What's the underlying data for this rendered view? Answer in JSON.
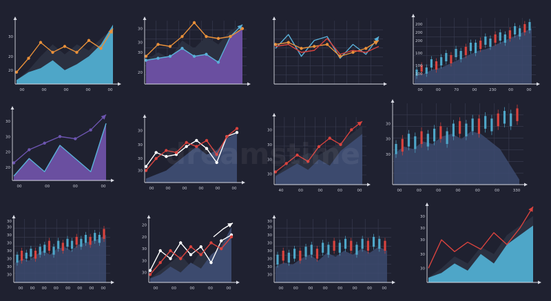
{
  "colors": {
    "background": "#1f2130",
    "axis": "#d8dae3",
    "grid": "#3a3d52",
    "orange": "#e8903a",
    "blue": "#5ab0d8",
    "teal": "#4ea6c8",
    "purple": "#6a4fa0",
    "purple_line": "#6d55b0",
    "red": "#d9433e",
    "white": "#ffffff",
    "slate": "#3c4a6e",
    "dark_shadow": "#2b3040",
    "candle_up": "#4ea6c8",
    "candle_down": "#d9433e"
  },
  "watermark": "dreamstime",
  "chart_data": [
    {
      "id": "c1",
      "type": "area",
      "ylim": [
        10,
        42
      ],
      "yticks": [
        "20",
        "20",
        "30"
      ],
      "ytick_values": [
        17,
        24,
        34
      ],
      "xticks": [
        "00",
        "00",
        "00",
        "00",
        "00"
      ],
      "series": [
        {
          "style": "fill",
          "color": "#2b3040",
          "values": [
            12,
            17,
            24,
            30,
            25,
            30,
            27,
            33,
            38
          ]
        },
        {
          "style": "fill",
          "color": "#4ea6c8",
          "values": [
            12,
            16,
            18,
            22,
            17,
            20,
            24,
            30,
            40
          ]
        },
        {
          "style": "line",
          "color": "#e8903a",
          "markers": true,
          "arrow": true,
          "values": [
            16,
            23,
            31,
            26,
            29,
            26,
            32,
            28,
            38
          ]
        }
      ]
    },
    {
      "id": "c2",
      "type": "area",
      "ylim": [
        10,
        42
      ],
      "yticks": [
        "20",
        "30",
        "30",
        "30"
      ],
      "ytick_values": [
        16,
        26,
        31,
        38
      ],
      "xticks": [],
      "series": [
        {
          "style": "fill",
          "color": "#2b3040",
          "values": [
            22,
            26,
            23,
            32,
            28,
            34,
            30,
            37,
            40
          ]
        },
        {
          "style": "fill",
          "color": "#6a4fa0",
          "values": [
            22,
            23,
            24,
            28,
            24,
            25,
            21,
            34,
            38
          ]
        },
        {
          "style": "line",
          "color": "#5ab0d8",
          "markers": true,
          "arrow": true,
          "values": [
            22,
            23,
            24,
            28,
            24,
            25,
            21,
            34,
            40
          ]
        },
        {
          "style": "line",
          "color": "#e8903a",
          "markers": true,
          "arrow": false,
          "values": [
            24,
            30,
            29,
            34,
            41,
            34,
            33,
            34,
            38
          ]
        }
      ]
    },
    {
      "id": "c3",
      "type": "line",
      "ylim": [
        10,
        42
      ],
      "yticks": [],
      "xticks": [],
      "series": [
        {
          "style": "line",
          "color": "#5ab0d8",
          "markers": false,
          "arrow": true,
          "values": [
            28,
            35,
            24,
            32,
            34,
            23,
            30,
            25,
            34
          ]
        },
        {
          "style": "line",
          "color": "#e8903a",
          "markers": true,
          "arrow": true,
          "values": [
            30,
            31,
            28,
            29,
            30,
            24,
            26,
            28,
            32
          ]
        },
        {
          "style": "line",
          "color": "#d9433e",
          "markers": false,
          "arrow": false,
          "values": [
            29,
            30,
            26,
            27,
            33,
            25,
            27,
            26,
            29
          ]
        }
      ]
    },
    {
      "id": "c4",
      "type": "candlestick",
      "ylim": [
        10,
        42
      ],
      "yticks": [
        "100",
        "100",
        "100",
        "200",
        "200",
        "200"
      ],
      "ytick_values": [
        15,
        19,
        25,
        31,
        35,
        39
      ],
      "xticks": [
        "00",
        "00",
        "70",
        "00",
        "230",
        "00",
        "00"
      ],
      "area": [
        14,
        15,
        17,
        18,
        20,
        22,
        24,
        26,
        27,
        29,
        31,
        33,
        35,
        37
      ],
      "candles": [
        [
          14,
          17
        ],
        [
          16,
          19
        ],
        [
          15,
          18
        ],
        [
          18,
          22
        ],
        [
          17,
          21
        ],
        [
          19,
          23
        ],
        [
          21,
          25
        ],
        [
          20,
          24
        ],
        [
          23,
          27
        ],
        [
          22,
          26
        ],
        [
          24,
          28
        ],
        [
          26,
          30
        ],
        [
          25,
          30
        ],
        [
          27,
          31
        ],
        [
          29,
          33
        ],
        [
          28,
          32
        ],
        [
          30,
          34
        ],
        [
          31,
          35
        ],
        [
          30,
          34
        ],
        [
          32,
          36
        ],
        [
          34,
          38
        ],
        [
          33,
          37
        ],
        [
          35,
          39
        ],
        [
          36,
          40
        ]
      ]
    },
    {
      "id": "c5",
      "type": "area",
      "ylim": [
        10,
        42
      ],
      "yticks": [
        "20",
        "20",
        "30",
        "30"
      ],
      "ytick_values": [
        16,
        23,
        30,
        37
      ],
      "xticks": [
        "00",
        "00",
        "00",
        "00"
      ],
      "series": [
        {
          "style": "fill",
          "color": "#6a4fa0",
          "values": [
            12,
            20,
            14,
            26,
            20,
            14,
            36
          ]
        },
        {
          "style": "line",
          "color": "#5ab0d8",
          "markers": false,
          "arrow": false,
          "values": [
            12,
            20,
            14,
            26,
            20,
            14,
            36
          ]
        },
        {
          "style": "line",
          "color": "#6d55b0",
          "markers": true,
          "arrow": true,
          "values": [
            18,
            24,
            27,
            30,
            29,
            33,
            40
          ]
        }
      ]
    },
    {
      "id": "c6",
      "type": "area",
      "ylim": [
        10,
        42
      ],
      "yticks": [
        "30",
        "30",
        "30",
        "30"
      ],
      "ytick_values": [
        16,
        22,
        29,
        36
      ],
      "xticks": [
        "00",
        "00",
        "00",
        "00",
        "00",
        "00"
      ],
      "series": [
        {
          "style": "fill",
          "color": "#3c4a6e",
          "values": [
            12,
            14,
            16,
            20,
            24,
            28,
            24,
            26,
            32,
            35
          ]
        },
        {
          "style": "line",
          "color": "#ffffff",
          "markers": true,
          "arrow": false,
          "values": [
            18,
            25,
            23,
            24,
            28,
            31,
            27,
            20,
            33,
            35
          ]
        },
        {
          "style": "line",
          "color": "#d9433e",
          "markers": true,
          "arrow": false,
          "values": [
            16,
            22,
            26,
            25,
            30,
            28,
            31,
            24,
            33,
            37
          ]
        }
      ]
    },
    {
      "id": "c7",
      "type": "area",
      "ylim": [
        10,
        42
      ],
      "yticks": [
        "30",
        "30",
        "30",
        "30"
      ],
      "ytick_values": [
        15,
        22,
        29,
        36
      ],
      "xticks": [
        "40",
        "00",
        "00",
        "00",
        "00"
      ],
      "series": [
        {
          "style": "fill",
          "color": "#2b3040",
          "values": [
            14,
            19,
            22,
            25,
            24,
            27,
            30,
            34,
            38
          ]
        },
        {
          "style": "fill",
          "color": "#3c4a6e",
          "values": [
            14,
            17,
            20,
            17,
            22,
            19,
            26,
            30,
            34
          ]
        },
        {
          "style": "line",
          "color": "#d9433e",
          "markers": true,
          "arrow": true,
          "values": [
            16,
            20,
            24,
            21,
            28,
            32,
            29,
            36,
            40
          ]
        }
      ]
    },
    {
      "id": "c8",
      "type": "candlestick",
      "ylim": [
        10,
        42
      ],
      "yticks": [
        "30",
        "30",
        "30"
      ],
      "ytick_values": [
        22,
        28,
        34
      ],
      "xticks": [
        "00",
        "00",
        "00",
        "00",
        "00",
        "00",
        "330"
      ],
      "area": [
        22,
        25,
        24,
        27,
        26,
        29,
        30,
        28,
        31,
        30,
        27,
        24,
        18,
        12
      ],
      "candles": [
        [
          22,
          26
        ],
        [
          23,
          28
        ],
        [
          25,
          30
        ],
        [
          24,
          29
        ],
        [
          26,
          31
        ],
        [
          25,
          30
        ],
        [
          27,
          32
        ],
        [
          28,
          33
        ],
        [
          26,
          31
        ],
        [
          29,
          34
        ],
        [
          30,
          35
        ],
        [
          29,
          34
        ],
        [
          31,
          36
        ],
        [
          30,
          36
        ],
        [
          32,
          37
        ],
        [
          31,
          36
        ],
        [
          33,
          38
        ],
        [
          34,
          39
        ],
        [
          33,
          38
        ],
        [
          35,
          40
        ]
      ]
    },
    {
      "id": "c9",
      "type": "candlestick",
      "ylim": [
        10,
        42
      ],
      "yticks": [
        "30",
        "30",
        "30",
        "30",
        "30",
        "30",
        "30",
        "30"
      ],
      "ytick_values": [
        14,
        18,
        22,
        26,
        30,
        34,
        38,
        41
      ],
      "xticks": [
        "00",
        "00",
        "00",
        "00",
        "00",
        "00",
        "00",
        "00"
      ],
      "area": [
        20,
        22,
        21,
        24,
        26,
        24,
        27,
        28,
        26,
        29,
        30,
        31,
        32,
        34
      ],
      "candles": [
        [
          20,
          24
        ],
        [
          21,
          26
        ],
        [
          22,
          25
        ],
        [
          23,
          27
        ],
        [
          22,
          26
        ],
        [
          24,
          28
        ],
        [
          25,
          29
        ],
        [
          26,
          31
        ],
        [
          24,
          28
        ],
        [
          27,
          31
        ],
        [
          26,
          30
        ],
        [
          28,
          32
        ],
        [
          27,
          31
        ],
        [
          29,
          33
        ],
        [
          28,
          32
        ],
        [
          30,
          34
        ],
        [
          29,
          33
        ],
        [
          31,
          35
        ],
        [
          30,
          34
        ],
        [
          32,
          37
        ]
      ]
    },
    {
      "id": "c10",
      "type": "area",
      "ylim": [
        10,
        42
      ],
      "yticks": [
        "30",
        "30",
        "30",
        "20",
        "20"
      ],
      "ytick_values": [
        15,
        21,
        27,
        33,
        39
      ],
      "xticks": [
        "00",
        "00",
        "00",
        "00",
        "00"
      ],
      "series": [
        {
          "style": "fill",
          "color": "#2b3040",
          "values": [
            12,
            16,
            20,
            24,
            18,
            26,
            22,
            30,
            36
          ]
        },
        {
          "style": "fill",
          "color": "#3c4a6e",
          "values": [
            12,
            14,
            18,
            15,
            20,
            17,
            24,
            28,
            38
          ]
        },
        {
          "style": "line",
          "color": "#ffffff",
          "markers": true,
          "arrow": false,
          "values": [
            16,
            26,
            22,
            30,
            24,
            28,
            20,
            31,
            34
          ]
        },
        {
          "style": "line",
          "color": "#d9433e",
          "markers": true,
          "arrow": false,
          "values": [
            14,
            20,
            26,
            22,
            28,
            24,
            30,
            27,
            33
          ]
        },
        {
          "style": "line",
          "color": "#ffffff",
          "markers": false,
          "arrow": true,
          "values": [
            33,
            37,
            40
          ]
        }
      ]
    },
    {
      "id": "c11",
      "type": "candlestick",
      "ylim": [
        10,
        42
      ],
      "yticks": [
        "30",
        "30",
        "30",
        "30",
        "30",
        "30",
        "30",
        "30"
      ],
      "ytick_values": [
        14,
        18,
        22,
        26,
        30,
        34,
        38,
        41
      ],
      "xticks": [
        "00",
        "00",
        "00",
        "00",
        "00",
        "00",
        "00",
        "00"
      ],
      "area": [
        18,
        20,
        19,
        22,
        24,
        21,
        25,
        23,
        26,
        24,
        27,
        25,
        28,
        26
      ],
      "candles": [
        [
          19,
          24
        ],
        [
          21,
          26
        ],
        [
          20,
          25
        ],
        [
          22,
          27
        ],
        [
          21,
          26
        ],
        [
          23,
          28
        ],
        [
          24,
          29
        ],
        [
          22,
          27
        ],
        [
          25,
          30
        ],
        [
          24,
          29
        ],
        [
          26,
          31
        ],
        [
          25,
          30
        ],
        [
          27,
          32
        ],
        [
          26,
          31
        ],
        [
          24,
          29
        ],
        [
          27,
          32
        ],
        [
          26,
          31
        ],
        [
          28,
          33
        ],
        [
          27,
          32
        ],
        [
          26,
          31
        ]
      ]
    },
    {
      "id": "c12",
      "type": "area",
      "ylim": [
        10,
        42
      ],
      "yticks": [
        "30",
        "30",
        "30",
        "30",
        "30"
      ],
      "ytick_values": [
        16,
        22,
        28,
        33,
        38
      ],
      "xticks": [],
      "series": [
        {
          "style": "fill",
          "color": "#2b3040",
          "values": [
            12,
            16,
            21,
            18,
            25,
            22,
            30,
            34,
            38
          ]
        },
        {
          "style": "fill",
          "color": "#4ea6c8",
          "values": [
            12,
            14,
            18,
            15,
            22,
            18,
            26,
            30,
            34
          ]
        },
        {
          "style": "line",
          "color": "#d9433e",
          "markers": false,
          "arrow": true,
          "values": [
            16,
            28,
            23,
            27,
            24,
            31,
            26,
            33,
            42
          ]
        }
      ]
    }
  ]
}
